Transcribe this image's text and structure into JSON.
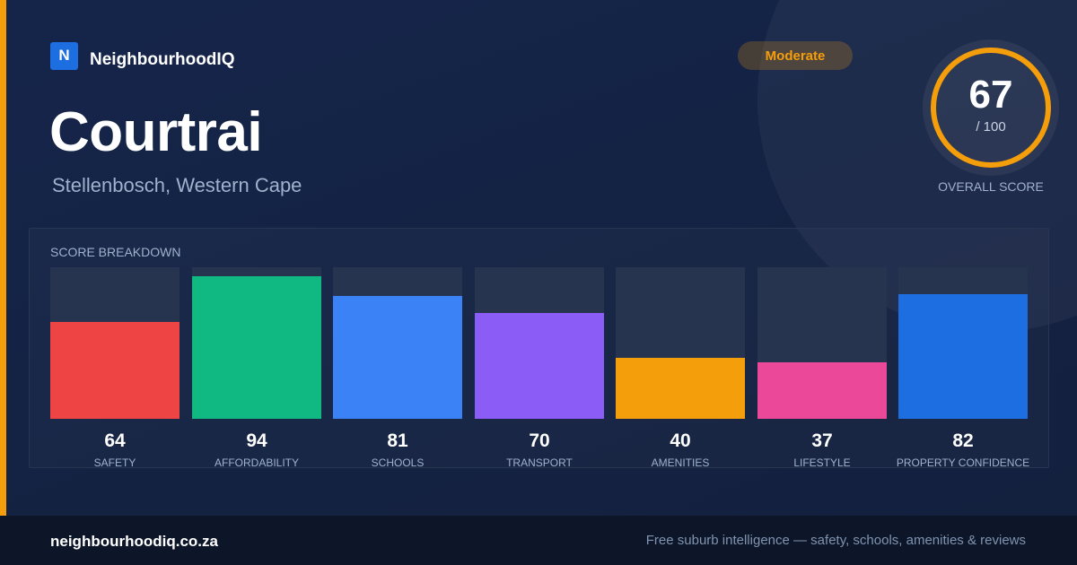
{
  "brand": {
    "logo_letter": "N",
    "name": "NeighbourhoodIQ",
    "logo_color": "#1d6ee0"
  },
  "suburb": {
    "name": "Courtrai",
    "location": "Stellenbosch, Western Cape"
  },
  "rating_badge": {
    "label": "Moderate",
    "color": "#f59e0b"
  },
  "overall": {
    "score": "67",
    "max_label": "/ 100",
    "score_fraction": 0.67,
    "caption": "OVERALL SCORE",
    "ring_color": "#f59e0b"
  },
  "breakdown": {
    "title": "SCORE BREAKDOWN"
  },
  "chart_data": {
    "type": "bar",
    "title": "SCORE BREAKDOWN",
    "ylim": [
      0,
      100
    ],
    "categories": [
      "SAFETY",
      "AFFORDABILITY",
      "SCHOOLS",
      "TRANSPORT",
      "AMENITIES",
      "LIFESTYLE",
      "PROPERTY CONFIDENCE"
    ],
    "values": [
      64,
      94,
      81,
      70,
      40,
      37,
      82
    ],
    "colors": [
      "#ef4444",
      "#10b981",
      "#3b82f6",
      "#8b5cf6",
      "#f59e0b",
      "#ec4899",
      "#1d6ee0"
    ]
  },
  "footer": {
    "url": "neighbourhoodiq.co.za",
    "tagline": "Free suburb intelligence — safety, schools, amenities & reviews"
  }
}
